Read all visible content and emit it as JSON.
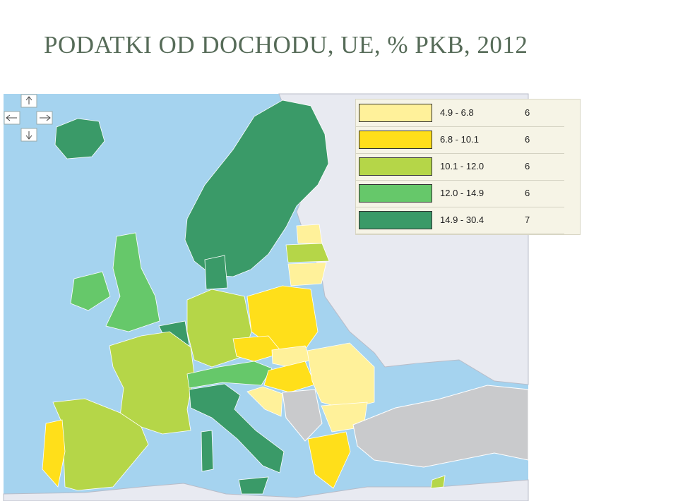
{
  "title": "PODATKI OD DOCHODU, UE, % PKB, 2012",
  "legend": {
    "rows": [
      {
        "label": "4.9 - 6.8",
        "count": 6,
        "color": "#fff19a"
      },
      {
        "label": "6.8 - 10.1",
        "count": 6,
        "color": "#ffdf1a"
      },
      {
        "label": "10.1 - 12.0",
        "count": 6,
        "color": "#b5d648"
      },
      {
        "label": "12.0 - 14.9",
        "count": 6,
        "color": "#66c86a"
      },
      {
        "label": "14.9 - 30.4",
        "count": 7,
        "color": "#3a9a68"
      }
    ]
  }
}
